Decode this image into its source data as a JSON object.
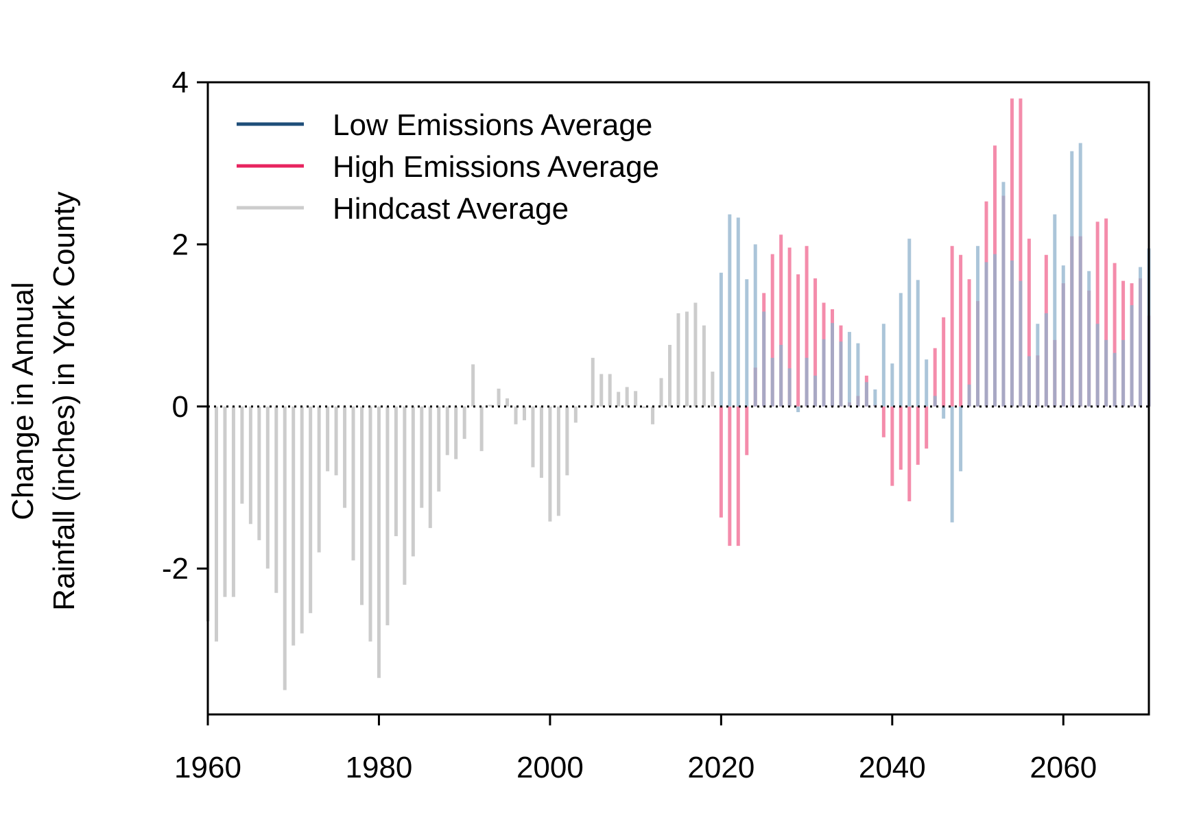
{
  "chart_data": {
    "type": "bar",
    "title": "",
    "xlabel": "",
    "ylabel_lines": [
      "Change in Annual",
      "Rainfall (inches) in York County"
    ],
    "xlim": [
      1960,
      2070
    ],
    "ylim": [
      -3.8,
      4
    ],
    "xticks": [
      1960,
      1980,
      2000,
      2020,
      2040,
      2060
    ],
    "yticks": [
      -2,
      0,
      2,
      4
    ],
    "ytick_labels": [
      "-2",
      "0",
      "2",
      "4"
    ],
    "zero_line": "dotted",
    "grid": false,
    "legend": {
      "position": "top-left",
      "entries": [
        {
          "label": "Low Emissions Average",
          "color": "#1f4e79"
        },
        {
          "label": "High Emissions Average",
          "color": "#e8245f"
        },
        {
          "label": "Hindcast Average",
          "color": "#cccccc"
        }
      ]
    },
    "series": [
      {
        "name": "Hindcast Average",
        "color": "#cccccc",
        "x": [
          1960,
          1961,
          1962,
          1963,
          1964,
          1965,
          1966,
          1967,
          1968,
          1969,
          1970,
          1971,
          1972,
          1973,
          1974,
          1975,
          1976,
          1977,
          1978,
          1979,
          1980,
          1981,
          1982,
          1983,
          1984,
          1985,
          1986,
          1987,
          1988,
          1989,
          1990,
          1991,
          1992,
          1993,
          1994,
          1995,
          1996,
          1997,
          1998,
          1999,
          2000,
          2001,
          2002,
          2003,
          2004,
          2005,
          2006,
          2007,
          2008,
          2009,
          2010,
          2011,
          2012,
          2013,
          2014,
          2015,
          2016,
          2017,
          2018,
          2019
        ],
        "values": [
          -2.65,
          -2.9,
          -2.35,
          -2.35,
          -1.2,
          -1.45,
          -1.65,
          -2.0,
          -2.3,
          -3.5,
          -2.95,
          -2.8,
          -2.55,
          -1.8,
          -0.8,
          -0.85,
          -1.25,
          -1.9,
          -2.45,
          -2.9,
          -3.35,
          -2.7,
          -1.6,
          -2.2,
          -1.85,
          -1.25,
          -1.5,
          -1.05,
          -0.6,
          -0.65,
          -0.4,
          0.52,
          -0.55,
          0.02,
          0.22,
          0.1,
          -0.22,
          -0.17,
          -0.75,
          -0.88,
          -1.42,
          -1.35,
          -0.85,
          -0.2,
          0.0,
          0.6,
          0.4,
          0.4,
          0.18,
          0.24,
          0.19,
          -0.02,
          -0.22,
          0.35,
          0.76,
          1.15,
          1.17,
          1.28,
          1.0,
          0.43
        ]
      },
      {
        "name": "High Emissions Average",
        "color": "#f48cab",
        "x": [
          2020,
          2021,
          2022,
          2023,
          2024,
          2025,
          2026,
          2027,
          2028,
          2029,
          2030,
          2031,
          2032,
          2033,
          2034,
          2035,
          2036,
          2037,
          2038,
          2039,
          2040,
          2041,
          2042,
          2043,
          2044,
          2045,
          2046,
          2047,
          2048,
          2049,
          2050,
          2051,
          2052,
          2053,
          2054,
          2055,
          2056,
          2057,
          2058,
          2059,
          2060,
          2061,
          2062,
          2063,
          2064,
          2065,
          2066,
          2067,
          2068,
          2069,
          2070
        ],
        "values": [
          -1.37,
          -1.72,
          -1.72,
          -0.6,
          0.48,
          1.4,
          1.88,
          2.12,
          1.96,
          1.63,
          1.98,
          1.58,
          1.28,
          1.2,
          1.0,
          0.05,
          0.13,
          0.38,
          0.02,
          -0.38,
          -0.98,
          -0.78,
          -1.17,
          -0.72,
          -0.52,
          0.72,
          1.1,
          1.98,
          1.87,
          1.57,
          1.3,
          2.53,
          3.22,
          2.6,
          3.8,
          3.8,
          2.07,
          0.63,
          1.87,
          0.82,
          1.52,
          2.1,
          2.1,
          1.43,
          2.28,
          2.32,
          1.77,
          1.55,
          1.52,
          1.58,
          1.12
        ]
      },
      {
        "name": "Low Emissions Average",
        "color": "#8fb2cc",
        "x": [
          2020,
          2021,
          2022,
          2023,
          2024,
          2025,
          2026,
          2027,
          2028,
          2029,
          2030,
          2031,
          2032,
          2033,
          2034,
          2035,
          2036,
          2037,
          2038,
          2039,
          2040,
          2041,
          2042,
          2043,
          2044,
          2045,
          2046,
          2047,
          2048,
          2049,
          2050,
          2051,
          2052,
          2053,
          2054,
          2055,
          2056,
          2057,
          2058,
          2059,
          2060,
          2061,
          2062,
          2063,
          2064,
          2065,
          2066,
          2067,
          2068,
          2069,
          2070
        ],
        "values": [
          1.65,
          2.37,
          2.33,
          1.57,
          2.0,
          1.17,
          0.6,
          0.76,
          0.47,
          -0.07,
          0.6,
          0.38,
          0.83,
          1.03,
          0.8,
          0.92,
          0.78,
          0.3,
          0.21,
          1.02,
          0.53,
          1.4,
          2.07,
          1.56,
          0.58,
          0.13,
          -0.15,
          -1.43,
          -0.8,
          0.27,
          1.98,
          1.78,
          1.88,
          2.77,
          1.8,
          1.55,
          0.62,
          1.02,
          1.15,
          2.37,
          1.74,
          3.15,
          3.25,
          1.67,
          1.02,
          0.82,
          0.66,
          0.82,
          1.25,
          1.72,
          1.95
        ]
      }
    ]
  }
}
